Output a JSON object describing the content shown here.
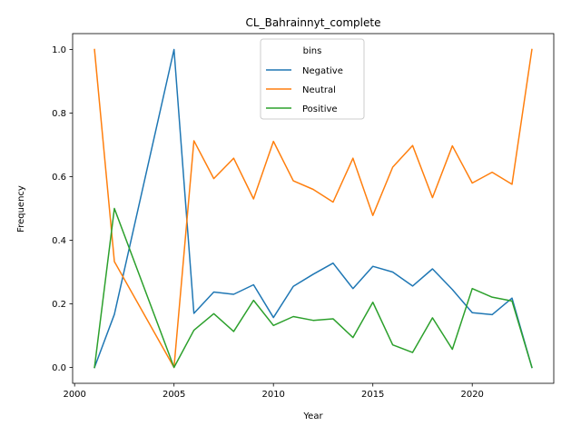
{
  "chart_data": {
    "type": "line",
    "title": "CL_Bahrainnyt_complete",
    "xlabel": "Year",
    "ylabel": "Frequency",
    "xlim": [
      1999.9,
      2024.1
    ],
    "ylim": [
      -0.05,
      1.05
    ],
    "x_ticks": [
      2000,
      2005,
      2010,
      2015,
      2020
    ],
    "y_ticks": [
      0.0,
      0.2,
      0.4,
      0.6,
      0.8,
      1.0
    ],
    "x_tick_labels": [
      "2000",
      "2005",
      "2010",
      "2015",
      "2020"
    ],
    "y_tick_labels": [
      "0.0",
      "0.2",
      "0.4",
      "0.6",
      "0.8",
      "1.0"
    ],
    "grid": false,
    "legend": {
      "title": "bins",
      "placement": "upper center"
    },
    "x": [
      2001,
      2002,
      2005,
      2006,
      2007,
      2008,
      2009,
      2010,
      2011,
      2012,
      2013,
      2014,
      2015,
      2016,
      2017,
      2018,
      2019,
      2020,
      2021,
      2022,
      2023
    ],
    "series": [
      {
        "name": "Negative",
        "color": "#1f77b4",
        "values": [
          0.0,
          0.167,
          1.0,
          0.17,
          0.237,
          0.23,
          0.26,
          0.157,
          0.255,
          0.293,
          0.328,
          0.248,
          0.318,
          0.3,
          0.256,
          0.31,
          0.245,
          0.172,
          0.166,
          0.218,
          0.0
        ]
      },
      {
        "name": "Neutral",
        "color": "#ff7f0e",
        "values": [
          1.0,
          0.333,
          0.0,
          0.713,
          0.594,
          0.658,
          0.53,
          0.711,
          0.587,
          0.56,
          0.52,
          0.658,
          0.478,
          0.63,
          0.698,
          0.534,
          0.697,
          0.58,
          0.614,
          0.576,
          1.0
        ]
      },
      {
        "name": "Positive",
        "color": "#2ca02c",
        "values": [
          0.0,
          0.5,
          0.0,
          0.117,
          0.169,
          0.113,
          0.211,
          0.132,
          0.16,
          0.148,
          0.153,
          0.094,
          0.205,
          0.071,
          0.047,
          0.156,
          0.057,
          0.248,
          0.221,
          0.209,
          0.0
        ]
      }
    ]
  }
}
